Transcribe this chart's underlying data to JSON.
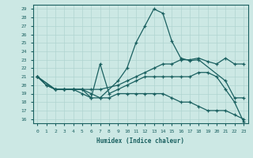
{
  "xlabel": "Humidex (Indice chaleur)",
  "ylabel": "",
  "bg_color": "#cce8e4",
  "line_color": "#1a6060",
  "grid_color": "#b0d4d0",
  "xlim": [
    -0.5,
    23.5
  ],
  "ylim": [
    15.5,
    29.5
  ],
  "xticks": [
    0,
    1,
    2,
    3,
    4,
    5,
    6,
    7,
    8,
    9,
    10,
    11,
    12,
    13,
    14,
    15,
    16,
    17,
    18,
    19,
    20,
    21,
    22,
    23
  ],
  "yticks": [
    16,
    17,
    18,
    19,
    20,
    21,
    22,
    23,
    24,
    25,
    26,
    27,
    28,
    29
  ],
  "lines": [
    {
      "x": [
        0,
        2,
        3,
        4,
        5,
        6,
        7,
        9,
        10,
        11,
        12,
        13,
        14,
        15,
        16,
        17,
        18,
        21,
        22,
        23
      ],
      "y": [
        21,
        19.5,
        19.5,
        19.5,
        19.5,
        19,
        18.5,
        20.5,
        22,
        25,
        27,
        29,
        28.5,
        25.2,
        23.2,
        22.9,
        23,
        20.5,
        18.5,
        18.5
      ]
    },
    {
      "x": [
        0,
        1,
        2,
        3,
        4,
        5,
        6,
        7,
        9,
        10,
        11,
        12,
        13,
        14,
        15,
        16,
        17,
        18,
        19,
        20,
        21,
        22,
        23
      ],
      "y": [
        21,
        20,
        19.5,
        19.5,
        19.5,
        19.5,
        19.5,
        19.5,
        20,
        20.5,
        21,
        21.5,
        22,
        22.5,
        22.5,
        23,
        23,
        23.2,
        22.8,
        22.5,
        23.2,
        22.5,
        22.5
      ]
    },
    {
      "x": [
        0,
        2,
        3,
        4,
        5,
        6,
        7,
        8,
        9,
        10,
        11,
        12,
        13,
        14,
        15,
        16,
        17,
        18,
        19,
        20,
        21,
        22,
        23
      ],
      "y": [
        21,
        19.5,
        19.5,
        19.5,
        19.5,
        18.5,
        22.5,
        19,
        19.5,
        20,
        20.5,
        21,
        21,
        21,
        21,
        21,
        21,
        21.5,
        21.5,
        21,
        19.5,
        18,
        15.7
      ]
    },
    {
      "x": [
        0,
        1,
        2,
        3,
        4,
        5,
        6,
        7,
        8,
        9,
        10,
        11,
        12,
        13,
        14,
        15,
        16,
        17,
        18,
        19,
        20,
        21,
        22,
        23
      ],
      "y": [
        21,
        20,
        19.5,
        19.5,
        19.5,
        19,
        18.5,
        18.5,
        18.5,
        19,
        19,
        19,
        19,
        19,
        19,
        18.5,
        18,
        18,
        17.5,
        17,
        17,
        17,
        16.5,
        16
      ]
    }
  ]
}
